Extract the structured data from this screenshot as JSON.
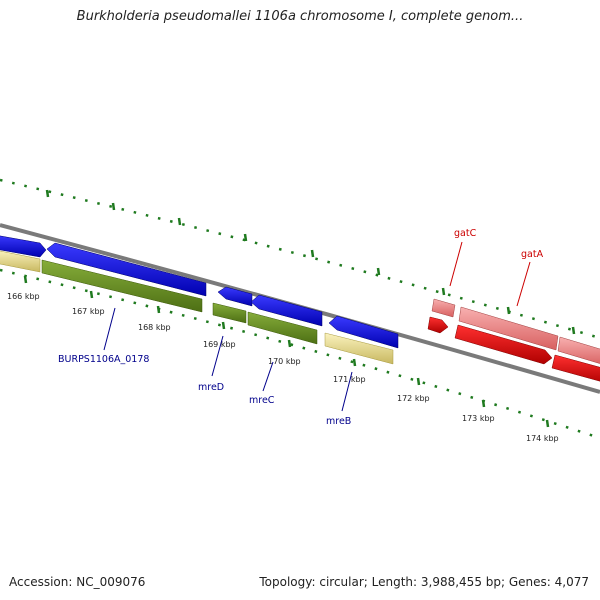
{
  "title": "Burkholderia pseudomallei 1106a chromosome I, complete genom...",
  "footer": {
    "accession": "Accession: NC_009076",
    "summary": "Topology: circular; Length: 3,988,455 bp; Genes: 4,077"
  },
  "colors": {
    "forward_cds": "#0a0ae0",
    "reverse_cds": "#5f8a1e",
    "gene_pale": "#f0e49c",
    "rna": "#f08888",
    "rna_dark": "#f00000",
    "backbone": "#7a7a7a",
    "tick": "#1f7a1f",
    "label_gene": "#00008b",
    "label_rna": "#cc0000"
  },
  "ticks": [
    {
      "label": "166 kbp"
    },
    {
      "label": "167 kbp"
    },
    {
      "label": "168 kbp"
    },
    {
      "label": "169 kbp"
    },
    {
      "label": "170 kbp"
    },
    {
      "label": "171 kbp"
    },
    {
      "label": "172 kbp"
    },
    {
      "label": "173 kbp"
    },
    {
      "label": "174 kbp"
    }
  ],
  "labels": {
    "burps": "BURPS1106A_0178",
    "mreD": "mreD",
    "mreC": "mreC",
    "mreB": "mreB",
    "gatC": "gatC",
    "gatA": "gatA"
  }
}
